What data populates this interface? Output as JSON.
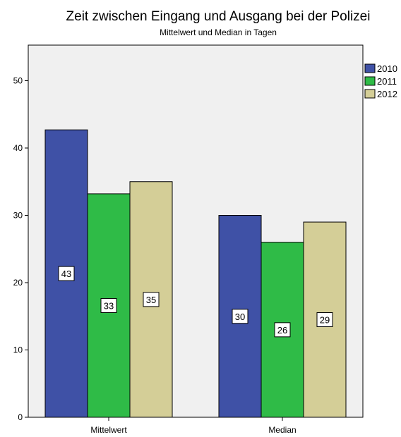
{
  "chart_data": {
    "type": "bar",
    "title": "Zeit zwischen Eingang und Ausgang bei der Polizei",
    "subtitle": "Mittelwert und Median in Tagen",
    "xlabel": "",
    "ylabel": "",
    "categories": [
      "Mittelwert",
      "Median"
    ],
    "series": [
      {
        "name": "2010",
        "color": "#3f51a6",
        "values": [
          42.7,
          30.0
        ],
        "labels": [
          "43",
          "30"
        ]
      },
      {
        "name": "2011",
        "color": "#2fbb47",
        "values": [
          33.2,
          26.0
        ],
        "labels": [
          "33",
          "26"
        ]
      },
      {
        "name": "2012",
        "color": "#d4ce97",
        "values": [
          35.0,
          29.0
        ],
        "labels": [
          "35",
          "29"
        ]
      }
    ],
    "ylim": [
      0,
      55
    ],
    "yticks": [
      "0",
      "10",
      "20",
      "30",
      "40",
      "50"
    ],
    "grid": false,
    "legend_position": "top-right",
    "plot_background": "#f0f0f0"
  }
}
